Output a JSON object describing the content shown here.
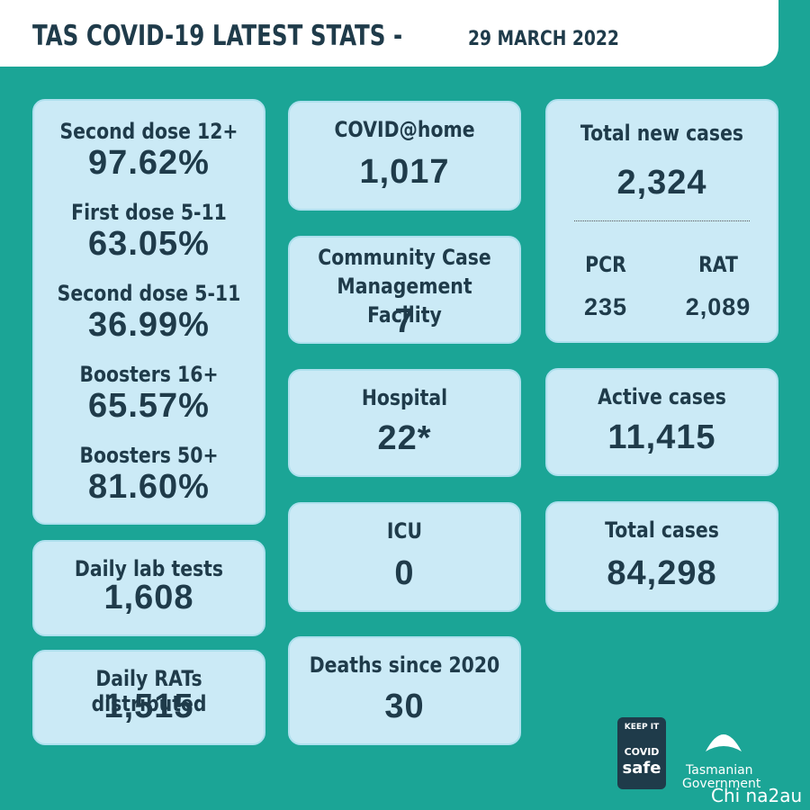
{
  "header": {
    "title": "TAS COVID-19 LATEST STATS -",
    "date": "29 MARCH 2022"
  },
  "vaccination": [
    {
      "label": "Second dose  12+",
      "value": "97.62%"
    },
    {
      "label": "First dose 5-11",
      "value": "63.05%"
    },
    {
      "label": "Second dose 5-11",
      "value": "36.99%"
    },
    {
      "label": "Boosters 16+",
      "value": "65.57%"
    },
    {
      "label": "Boosters 50+",
      "value": "81.60%"
    }
  ],
  "left_cards": [
    {
      "label": "Daily lab tests",
      "value": "1,608"
    },
    {
      "label": "Daily RATs distributed",
      "value": "1,515"
    }
  ],
  "middle_cards": [
    {
      "label": "COVID@home",
      "value": "1,017"
    },
    {
      "label": "Community Case Management Facility",
      "value": "7"
    },
    {
      "label": "Hospital",
      "value": "22*"
    },
    {
      "label": "ICU",
      "value": "0"
    },
    {
      "label": "Deaths since 2020",
      "value": "30"
    }
  ],
  "new_cases": {
    "label": "Total new cases",
    "value": "2,324",
    "breakdown": [
      {
        "label": "PCR",
        "value": "235"
      },
      {
        "label": "RAT",
        "value": "2,089"
      }
    ]
  },
  "right_cards": [
    {
      "label": "Active cases",
      "value": "11,415"
    },
    {
      "label": "Total cases",
      "value": "84,298"
    }
  ],
  "footer": {
    "badge_top": "KEEP IT",
    "badge_mid": "COVID",
    "badge_bottom": "safe",
    "gov_line1": "Tasmanian",
    "gov_line2": "Government",
    "watermark": "Chi na2au"
  }
}
